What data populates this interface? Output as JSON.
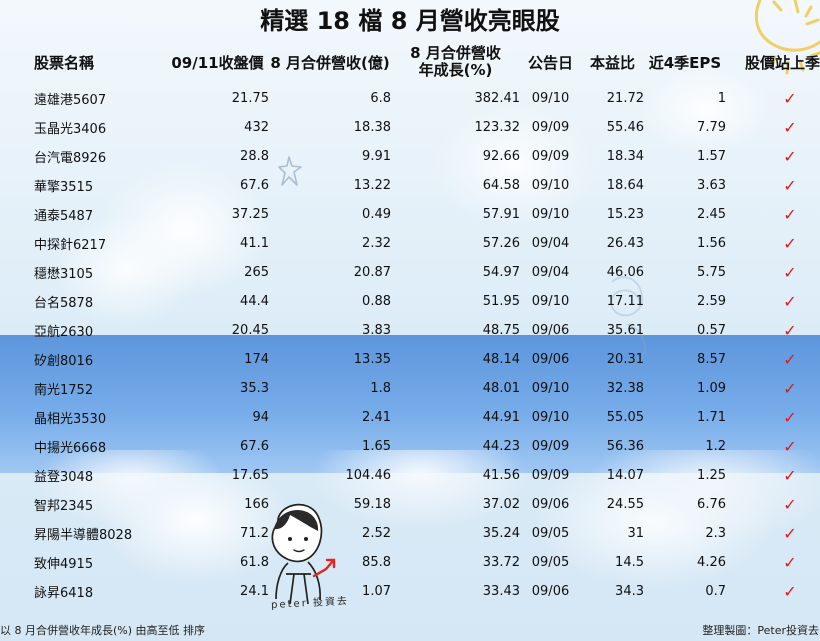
{
  "title": "精選 18 檔 8 月營收亮眼股",
  "table": {
    "headers": {
      "stock_name": "股票名稱",
      "close_price": "09/11收盤價",
      "august_revenue": "8 月合併營收(億)",
      "august_growth_line1": "8 月合併營收",
      "august_growth_line2": "年成長(%)",
      "announcement_date": "公告日",
      "pe_ratio": "本益比",
      "eps_4q": "近4季EPS",
      "above_last_quarter_line": "股價站上季線"
    },
    "rows": [
      {
        "stock": "遠雄港5607",
        "close": "21.75",
        "revenue": "6.8",
        "growth": "382.41",
        "date": "09/10",
        "pe": "21.72",
        "eps": "1",
        "above": "✓"
      },
      {
        "stock": "玉晶光3406",
        "close": "432",
        "revenue": "18.38",
        "growth": "123.32",
        "date": "09/09",
        "pe": "55.46",
        "eps": "7.79",
        "above": "✓"
      },
      {
        "stock": "台汽電8926",
        "close": "28.8",
        "revenue": "9.91",
        "growth": "92.66",
        "date": "09/09",
        "pe": "18.34",
        "eps": "1.57",
        "above": "✓"
      },
      {
        "stock": "華擎3515",
        "close": "67.6",
        "revenue": "13.22",
        "growth": "64.58",
        "date": "09/10",
        "pe": "18.64",
        "eps": "3.63",
        "above": "✓"
      },
      {
        "stock": "通泰5487",
        "close": "37.25",
        "revenue": "0.49",
        "growth": "57.91",
        "date": "09/10",
        "pe": "15.23",
        "eps": "2.45",
        "above": "✓"
      },
      {
        "stock": "中探針6217",
        "close": "41.1",
        "revenue": "2.32",
        "growth": "57.26",
        "date": "09/04",
        "pe": "26.43",
        "eps": "1.56",
        "above": "✓"
      },
      {
        "stock": "穩懋3105",
        "close": "265",
        "revenue": "20.87",
        "growth": "54.97",
        "date": "09/04",
        "pe": "46.06",
        "eps": "5.75",
        "above": "✓"
      },
      {
        "stock": "台名5878",
        "close": "44.4",
        "revenue": "0.88",
        "growth": "51.95",
        "date": "09/10",
        "pe": "17.11",
        "eps": "2.59",
        "above": "✓"
      },
      {
        "stock": "亞航2630",
        "close": "20.45",
        "revenue": "3.83",
        "growth": "48.75",
        "date": "09/06",
        "pe": "35.61",
        "eps": "0.57",
        "above": "✓"
      },
      {
        "stock": "矽創8016",
        "close": "174",
        "revenue": "13.35",
        "growth": "48.14",
        "date": "09/06",
        "pe": "20.31",
        "eps": "8.57",
        "above": "✓"
      },
      {
        "stock": "南光1752",
        "close": "35.3",
        "revenue": "1.8",
        "growth": "48.01",
        "date": "09/10",
        "pe": "32.38",
        "eps": "1.09",
        "above": "✓"
      },
      {
        "stock": "晶相光3530",
        "close": "94",
        "revenue": "2.41",
        "growth": "44.91",
        "date": "09/10",
        "pe": "55.05",
        "eps": "1.71",
        "above": "✓"
      },
      {
        "stock": "中揚光6668",
        "close": "67.6",
        "revenue": "1.65",
        "growth": "44.23",
        "date": "09/09",
        "pe": "56.36",
        "eps": "1.2",
        "above": "✓"
      },
      {
        "stock": "益登3048",
        "close": "17.65",
        "revenue": "104.46",
        "growth": "41.56",
        "date": "09/09",
        "pe": "14.07",
        "eps": "1.25",
        "above": "✓"
      },
      {
        "stock": "智邦2345",
        "close": "166",
        "revenue": "59.18",
        "growth": "37.02",
        "date": "09/06",
        "pe": "24.55",
        "eps": "6.76",
        "above": "✓"
      },
      {
        "stock": "昇陽半導體8028",
        "close": "71.2",
        "revenue": "2.52",
        "growth": "35.24",
        "date": "09/05",
        "pe": "31",
        "eps": "2.3",
        "above": "✓"
      },
      {
        "stock": "致伸4915",
        "close": "61.8",
        "revenue": "85.8",
        "growth": "33.72",
        "date": "09/05",
        "pe": "14.5",
        "eps": "4.26",
        "above": "✓"
      },
      {
        "stock": "詠昇6418",
        "close": "24.1",
        "revenue": "1.07",
        "growth": "33.43",
        "date": "09/06",
        "pe": "34.3",
        "eps": "0.7",
        "above": "✓"
      }
    ]
  },
  "footer": {
    "note": "以 8 月合併營收年成長(%) 由高至低 排序",
    "credit": "整理製圖：Peter投資去"
  },
  "illustration": {
    "signature": "peter 投資去"
  },
  "colors": {
    "checkmark": "#df1b1b",
    "sky_band": "#4b8ddd"
  }
}
